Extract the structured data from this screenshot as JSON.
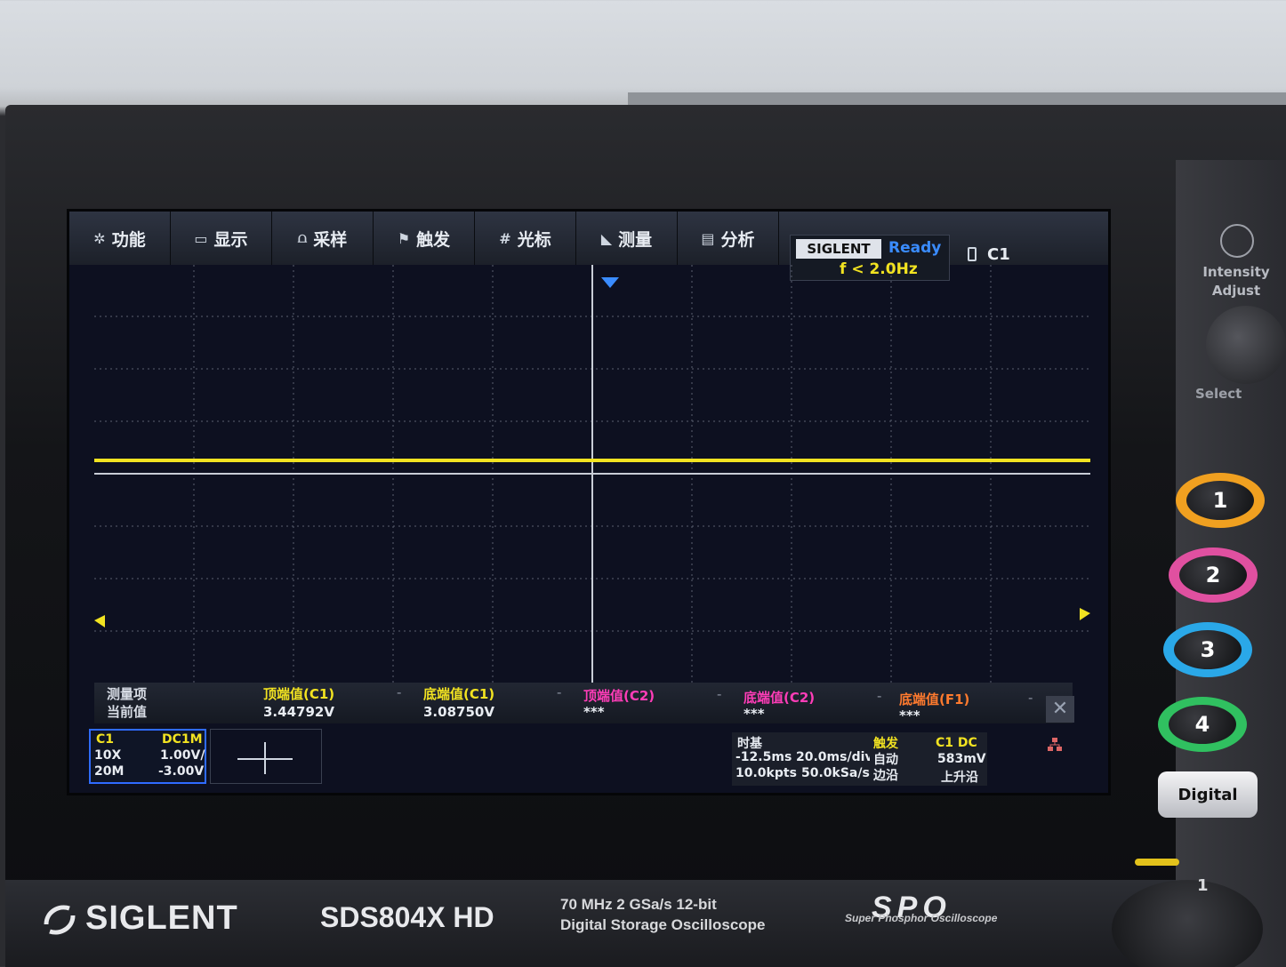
{
  "menu": {
    "items": [
      {
        "label": "功能",
        "icon": "gear-icon"
      },
      {
        "label": "显示",
        "icon": "display-icon"
      },
      {
        "label": "采样",
        "icon": "sample-icon"
      },
      {
        "label": "触发",
        "icon": "trigger-icon"
      },
      {
        "label": "光标",
        "icon": "cursor-icon"
      },
      {
        "label": "测量",
        "icon": "measure-icon"
      },
      {
        "label": "分析",
        "icon": "analyze-icon"
      }
    ]
  },
  "status": {
    "brand": "SIGLENT",
    "state": "Ready",
    "frequency": "f < 2.0Hz",
    "channel": "C1",
    "ready_color": "#3a8cff",
    "freq_color": "#f2e321"
  },
  "measurements": {
    "row_label_1": "测量项",
    "row_label_2": "当前值",
    "items": [
      {
        "name": "顶端值(C1)",
        "value": "3.44792V",
        "color": "#f2e321"
      },
      {
        "name": "底端值(C1)",
        "value": "3.08750V",
        "color": "#f2e321"
      },
      {
        "name": "顶端值(C2)",
        "value": "***",
        "color": "#ff3db8"
      },
      {
        "name": "底端值(C2)",
        "value": "***",
        "color": "#ff3db8"
      },
      {
        "name": "底端值(F1)",
        "value": "***",
        "color": "#ff7a2e"
      }
    ],
    "dash": "-"
  },
  "channel": {
    "name": "C1",
    "coupling": "DC1M",
    "probe": "10X",
    "scale": "1.00V/",
    "bw": "20M",
    "offset": "-3.00V",
    "color": "#f2e321"
  },
  "timebase": {
    "title": "时基",
    "delay": "-12.5ms",
    "scale": "20.0ms/div",
    "points": "10.0kpts",
    "rate": "50.0kSa/s"
  },
  "trigger": {
    "title": "触发",
    "source": "C1 DC",
    "mode": "自动",
    "level": "583mV",
    "type": "边沿",
    "slope": "上升沿"
  },
  "front_panel": {
    "brand": "SIGLENT",
    "model": "SDS804X HD",
    "spec_line_1": "70 MHz  2 GSa/s  12-bit",
    "spec_line_2": "Digital Storage Oscilloscope",
    "spo": "SPO",
    "spo_sub": "Super Phosphor Oscilloscope",
    "intensity_label": "Intensity Adjust",
    "select_label": "Select",
    "channel_buttons": [
      "1",
      "2",
      "3",
      "4"
    ],
    "channel_colors": [
      "#f0a020",
      "#e050a0",
      "#2aa8e8",
      "#30c060"
    ],
    "digital_label": "Digital",
    "small_label": "1"
  }
}
